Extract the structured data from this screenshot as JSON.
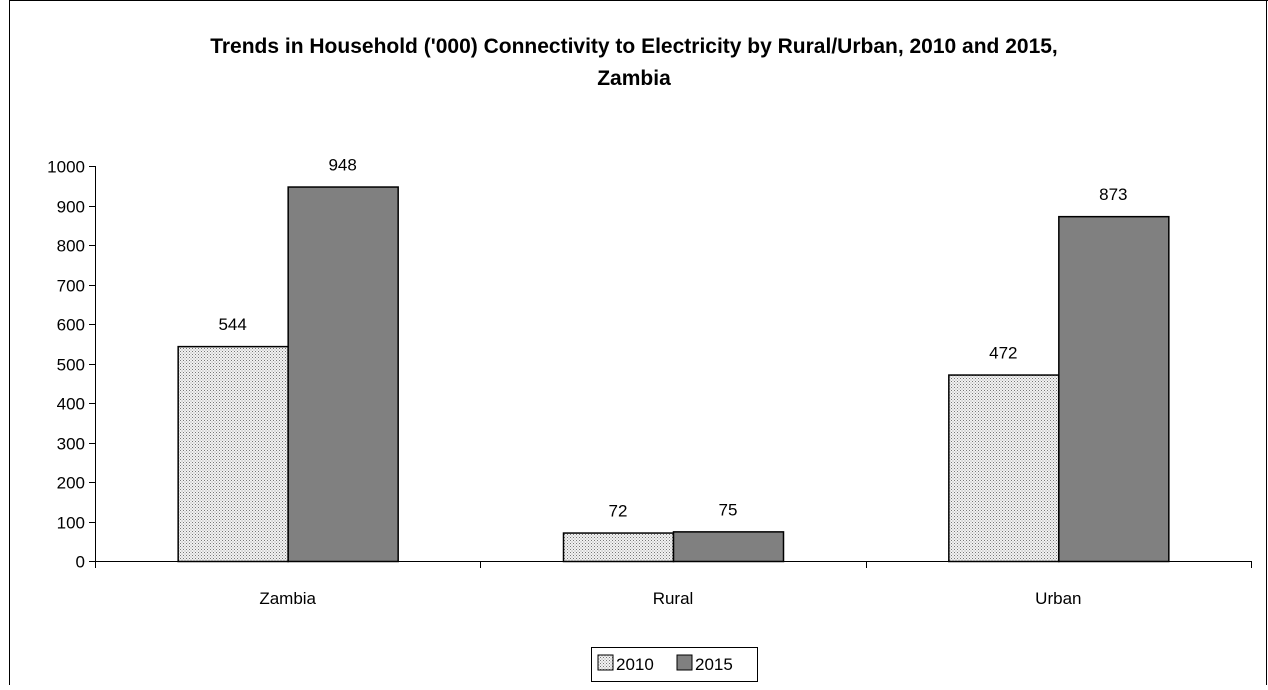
{
  "chart_data": {
    "type": "bar",
    "title_lines": [
      "Trends in Household ('000) Connectivity to Electricity by Rural/Urban, 2010 and 2015,",
      "Zambia"
    ],
    "categories": [
      "Zambia",
      "Rural",
      "Urban"
    ],
    "series": [
      {
        "name": "2010",
        "values": [
          544,
          72,
          472
        ],
        "color": "#e4e4e4",
        "pattern": "dotted"
      },
      {
        "name": "2015",
        "values": [
          948,
          75,
          873
        ],
        "color": "#808080",
        "pattern": "solid"
      }
    ],
    "ylim": [
      0,
      1000
    ],
    "yticks": [
      0,
      100,
      200,
      300,
      400,
      500,
      600,
      700,
      800,
      900,
      1000
    ],
    "grid": false,
    "legend_position": "bottom",
    "data_labels": true
  }
}
